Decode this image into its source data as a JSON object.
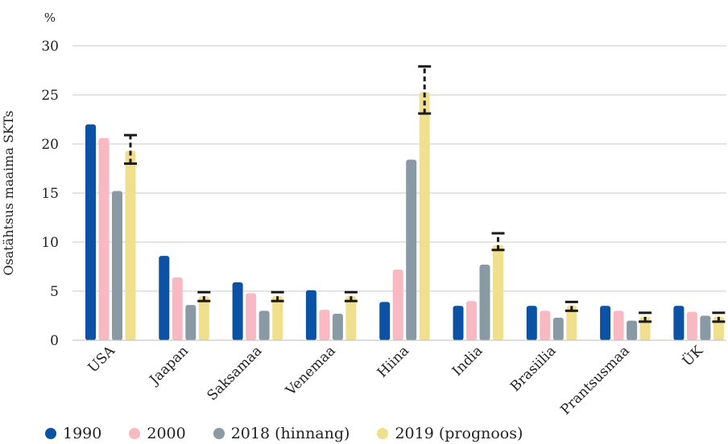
{
  "chart_data": {
    "type": "bar",
    "unit_label": "%",
    "ylabel": "Osatähtsus maaima SKTs",
    "xlabel": "",
    "ylim": [
      0,
      30
    ],
    "yticks": [
      0,
      5,
      10,
      15,
      20,
      25,
      30
    ],
    "grid": true,
    "legend_position": "bottom-left",
    "categories": [
      "USA",
      "Jaapan",
      "Saksamaa",
      "Venemaa",
      "Hiina",
      "India",
      "Brasiilia",
      "Prantsusmaa",
      "ÜK"
    ],
    "series": [
      {
        "name": "1990",
        "color": "#0b52a5",
        "values": [
          22.0,
          8.6,
          5.9,
          5.1,
          3.9,
          3.5,
          3.5,
          3.5,
          3.5
        ]
      },
      {
        "name": "2000",
        "color": "#f8b9c3",
        "values": [
          20.6,
          6.4,
          4.8,
          3.1,
          7.2,
          4.0,
          3.0,
          3.0,
          2.9
        ]
      },
      {
        "name": "2018 (hinnang)",
        "color": "#8a9aa5",
        "values": [
          15.2,
          3.6,
          3.0,
          2.7,
          18.4,
          7.7,
          2.3,
          2.0,
          2.5
        ]
      },
      {
        "name": "2019 (prognoos)",
        "color": "#f0e08e",
        "values": [
          19.3,
          4.5,
          4.5,
          4.5,
          25.3,
          9.7,
          3.5,
          2.4,
          2.4
        ],
        "error_low": [
          18.0,
          4.0,
          4.0,
          4.0,
          23.1,
          9.2,
          3.0,
          1.9,
          1.9
        ],
        "error_high": [
          20.9,
          4.9,
          4.9,
          4.9,
          27.9,
          10.9,
          3.9,
          2.8,
          2.8
        ]
      }
    ]
  }
}
